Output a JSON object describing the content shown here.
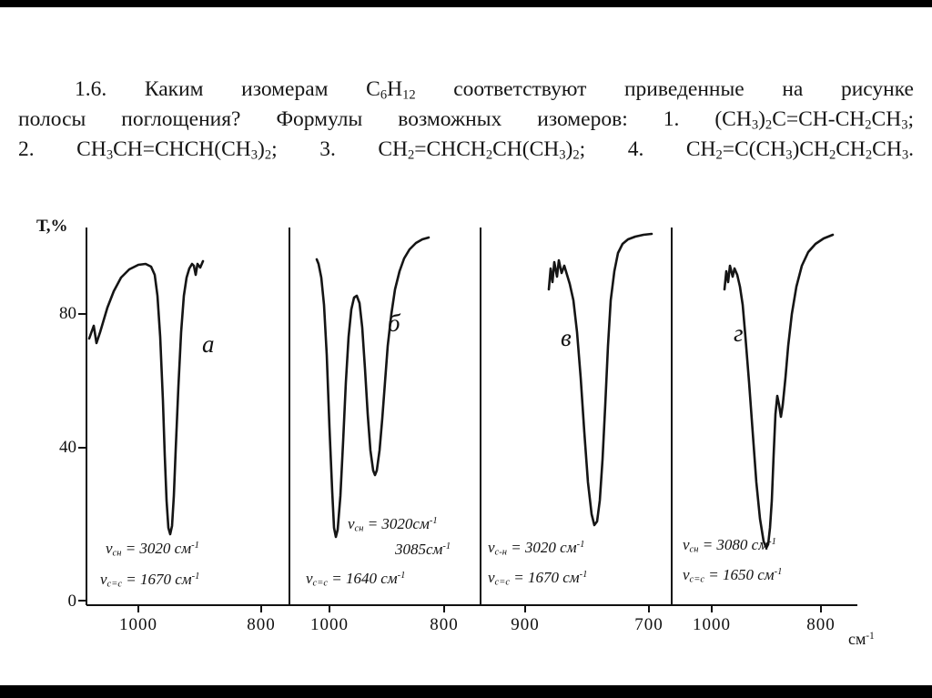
{
  "page": {
    "background": "#ffffff",
    "top_bar_color": "#000000",
    "bottom_bar_color": "#000000"
  },
  "problem": {
    "line1": [
      "1.6. Каким изомерам С",
      {
        "sub": "6"
      },
      "Н",
      {
        "sub": "12"
      },
      " соответствуют приведенные на рисунке"
    ],
    "line2": [
      "полосы поглощения? Формулы возможных изомеров: 1. (СН",
      {
        "sub": "3"
      },
      ")",
      {
        "sub": "2"
      },
      "С=СН-СН",
      {
        "sub": "2"
      },
      "СН",
      {
        "sub": "3"
      },
      ";"
    ],
    "line3": [
      "2. СН",
      {
        "sub": "3"
      },
      "СН=СНСН(СН",
      {
        "sub": "3"
      },
      ")",
      {
        "sub": "2"
      },
      "; 3. СН",
      {
        "sub": "2"
      },
      "=СНСН",
      {
        "sub": "2"
      },
      "СН(СН",
      {
        "sub": "3"
      },
      ")",
      {
        "sub": "2"
      },
      "; 4. СН",
      {
        "sub": "2"
      },
      "=С(СН",
      {
        "sub": "3"
      },
      ")СН",
      {
        "sub": "2"
      },
      "СН",
      {
        "sub": "2"
      },
      "СН",
      {
        "sub": "3"
      },
      "."
    ]
  },
  "figure": {
    "y_axis_title": "Т,%",
    "y_ticks": [
      "80",
      "40",
      "0"
    ],
    "x_unit": [
      "см",
      {
        "sup": "-1"
      }
    ],
    "panels": [
      {
        "label": "а",
        "x_ticks": [
          "1000",
          "800"
        ],
        "annotation1": [
          "ν",
          {
            "sub": "сн"
          },
          " = 3020 см",
          {
            "sup": "-1"
          }
        ],
        "annotation2": [
          "ν",
          {
            "sub": "с=с"
          },
          " = 1670 см",
          {
            "sup": "-1"
          }
        ]
      },
      {
        "label": "б",
        "x_ticks": [
          "1000",
          "800"
        ],
        "annotation1": [
          "ν",
          {
            "sub": "сн"
          },
          " = 3020см",
          {
            "sup": "-1"
          }
        ],
        "annotation2": [
          "3085см",
          {
            "sup": "-1"
          }
        ],
        "annotation3": [
          "ν",
          {
            "sub": "с=с"
          },
          " = 1640 см",
          {
            "sup": "-1"
          }
        ]
      },
      {
        "label": "в",
        "x_ticks": [
          "900",
          "700"
        ],
        "annotation1": [
          "ν",
          {
            "sub": "с-н"
          },
          " = 3020 см",
          {
            "sup": "-1"
          }
        ],
        "annotation2": [
          "ν",
          {
            "sub": "с=с"
          },
          " = 1670 см",
          {
            "sup": "-1"
          }
        ]
      },
      {
        "label": "г",
        "x_ticks": [
          "1000",
          "800"
        ],
        "annotation1": [
          "ν",
          {
            "sub": "сн"
          },
          " = 3080 см",
          {
            "sup": "-1"
          }
        ],
        "annotation2": [
          "ν",
          {
            "sub": "с=с"
          },
          " = 1650 см",
          {
            "sup": "-1"
          }
        ]
      }
    ]
  },
  "chart_data": [
    {
      "type": "line",
      "panel": "а",
      "ylabel": "Т,%",
      "xlabel": "см-1",
      "x_ticks": [
        1000,
        800
      ],
      "ylim": [
        0,
        100
      ],
      "baseline_T_percent": 88,
      "bands": [
        {
          "center_cm1": 950,
          "min_T_percent": 20
        }
      ],
      "annotations": {
        "nu_CH_cm1": 3020,
        "nu_CC_cm1": 1670
      }
    },
    {
      "type": "line",
      "panel": "б",
      "ylabel": "Т,%",
      "xlabel": "см-1",
      "x_ticks": [
        1000,
        800
      ],
      "ylim": [
        0,
        100
      ],
      "baseline_T_percent": 92,
      "bands": [
        {
          "center_cm1": 990,
          "min_T_percent": 14
        },
        {
          "center_cm1": 915,
          "min_T_percent": 37
        }
      ],
      "annotations": {
        "nu_CH_cm1": [
          3020,
          3085
        ],
        "nu_CC_cm1": 1640
      }
    },
    {
      "type": "line",
      "panel": "в",
      "ylabel": "Т,%",
      "xlabel": "см-1",
      "x_ticks": [
        900,
        700
      ],
      "ylim": [
        0,
        100
      ],
      "baseline_T_percent": 92,
      "bands": [
        {
          "center_cm1": 790,
          "min_T_percent": 22
        }
      ],
      "annotations": {
        "nu_CH_cm1": 3020,
        "nu_CC_cm1": 1670
      }
    },
    {
      "type": "line",
      "panel": "г",
      "ylabel": "Т,%",
      "xlabel": "см-1",
      "x_ticks": [
        1000,
        800
      ],
      "ylim": [
        0,
        100
      ],
      "baseline_T_percent": 92,
      "bands": [
        {
          "center_cm1": 895,
          "min_T_percent": 12
        },
        {
          "center_cm1": 860,
          "min_T_percent": 45,
          "note": "shoulder"
        }
      ],
      "annotations": {
        "nu_CH_cm1": 3080,
        "nu_CC_cm1": 1650
      }
    }
  ]
}
